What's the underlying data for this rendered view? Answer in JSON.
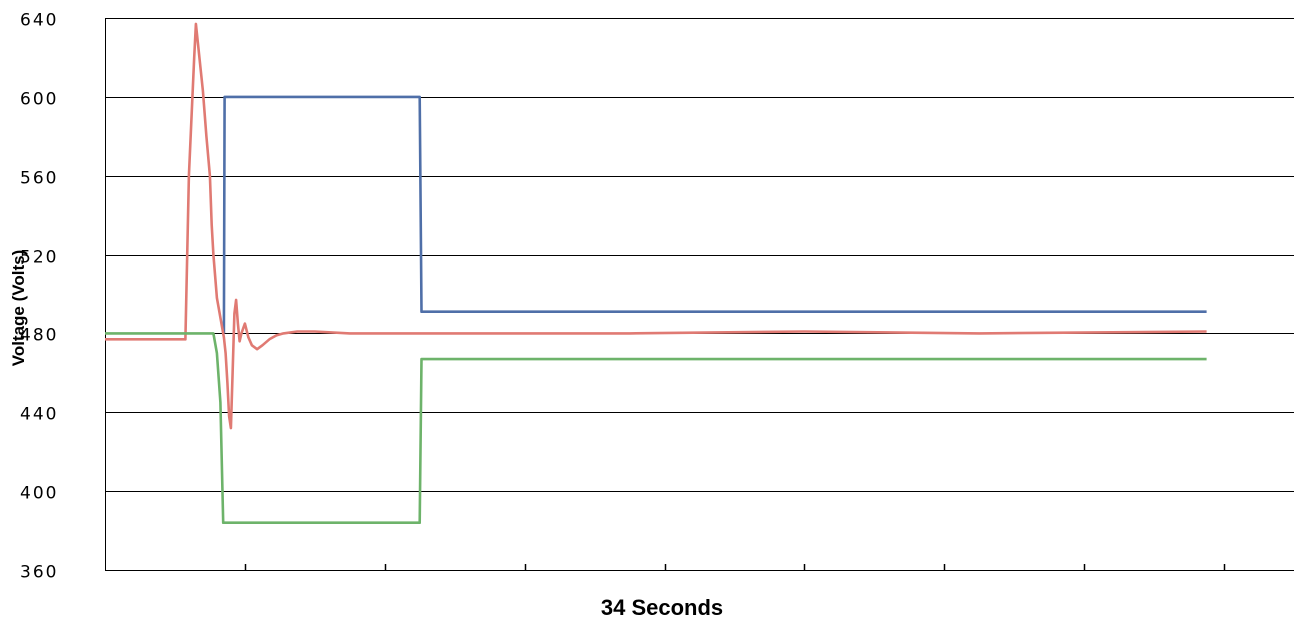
{
  "chart_data": {
    "type": "line",
    "xlabel": "34 Seconds",
    "ylabel": "Voltage (Volts)",
    "ylim": [
      360,
      640
    ],
    "xlim": [
      0,
      34
    ],
    "yticks": [
      360,
      400,
      440,
      480,
      520,
      560,
      600,
      640
    ],
    "grid": "horizontal",
    "legend": "none",
    "series": [
      {
        "color": "#4f6fa8",
        "points": [
          [
            3.4,
            480
          ],
          [
            3.42,
            600
          ],
          [
            9.0,
            600
          ],
          [
            9.05,
            491
          ],
          [
            31.5,
            491
          ]
        ]
      },
      {
        "color": "#e07a73",
        "points": [
          [
            0,
            477
          ],
          [
            1.2,
            477
          ],
          [
            2.3,
            477
          ],
          [
            2.4,
            560
          ],
          [
            2.55,
            620
          ],
          [
            2.6,
            637
          ],
          [
            2.7,
            620
          ],
          [
            2.8,
            603
          ],
          [
            2.9,
            580
          ],
          [
            3.0,
            560
          ],
          [
            3.05,
            535
          ],
          [
            3.1,
            520
          ],
          [
            3.2,
            498
          ],
          [
            3.3,
            488
          ],
          [
            3.4,
            478
          ],
          [
            3.45,
            470
          ],
          [
            3.5,
            455
          ],
          [
            3.55,
            438
          ],
          [
            3.6,
            432
          ],
          [
            3.65,
            460
          ],
          [
            3.7,
            490
          ],
          [
            3.75,
            497
          ],
          [
            3.8,
            485
          ],
          [
            3.85,
            476
          ],
          [
            3.9,
            480
          ],
          [
            4.0,
            485
          ],
          [
            4.1,
            478
          ],
          [
            4.2,
            474
          ],
          [
            4.35,
            472
          ],
          [
            4.5,
            474
          ],
          [
            4.7,
            477
          ],
          [
            4.9,
            479
          ],
          [
            5.1,
            480
          ],
          [
            5.5,
            481
          ],
          [
            6.0,
            481
          ],
          [
            7.0,
            480
          ],
          [
            10.0,
            480
          ],
          [
            15.0,
            480
          ],
          [
            20.0,
            481
          ],
          [
            25.0,
            480
          ],
          [
            31.5,
            481
          ]
        ]
      },
      {
        "color": "#6db36a",
        "points": [
          [
            0,
            480
          ],
          [
            3.1,
            480
          ],
          [
            3.2,
            470
          ],
          [
            3.3,
            445
          ],
          [
            3.38,
            384
          ],
          [
            9.0,
            384
          ],
          [
            9.05,
            467
          ],
          [
            31.5,
            467
          ]
        ]
      }
    ]
  }
}
